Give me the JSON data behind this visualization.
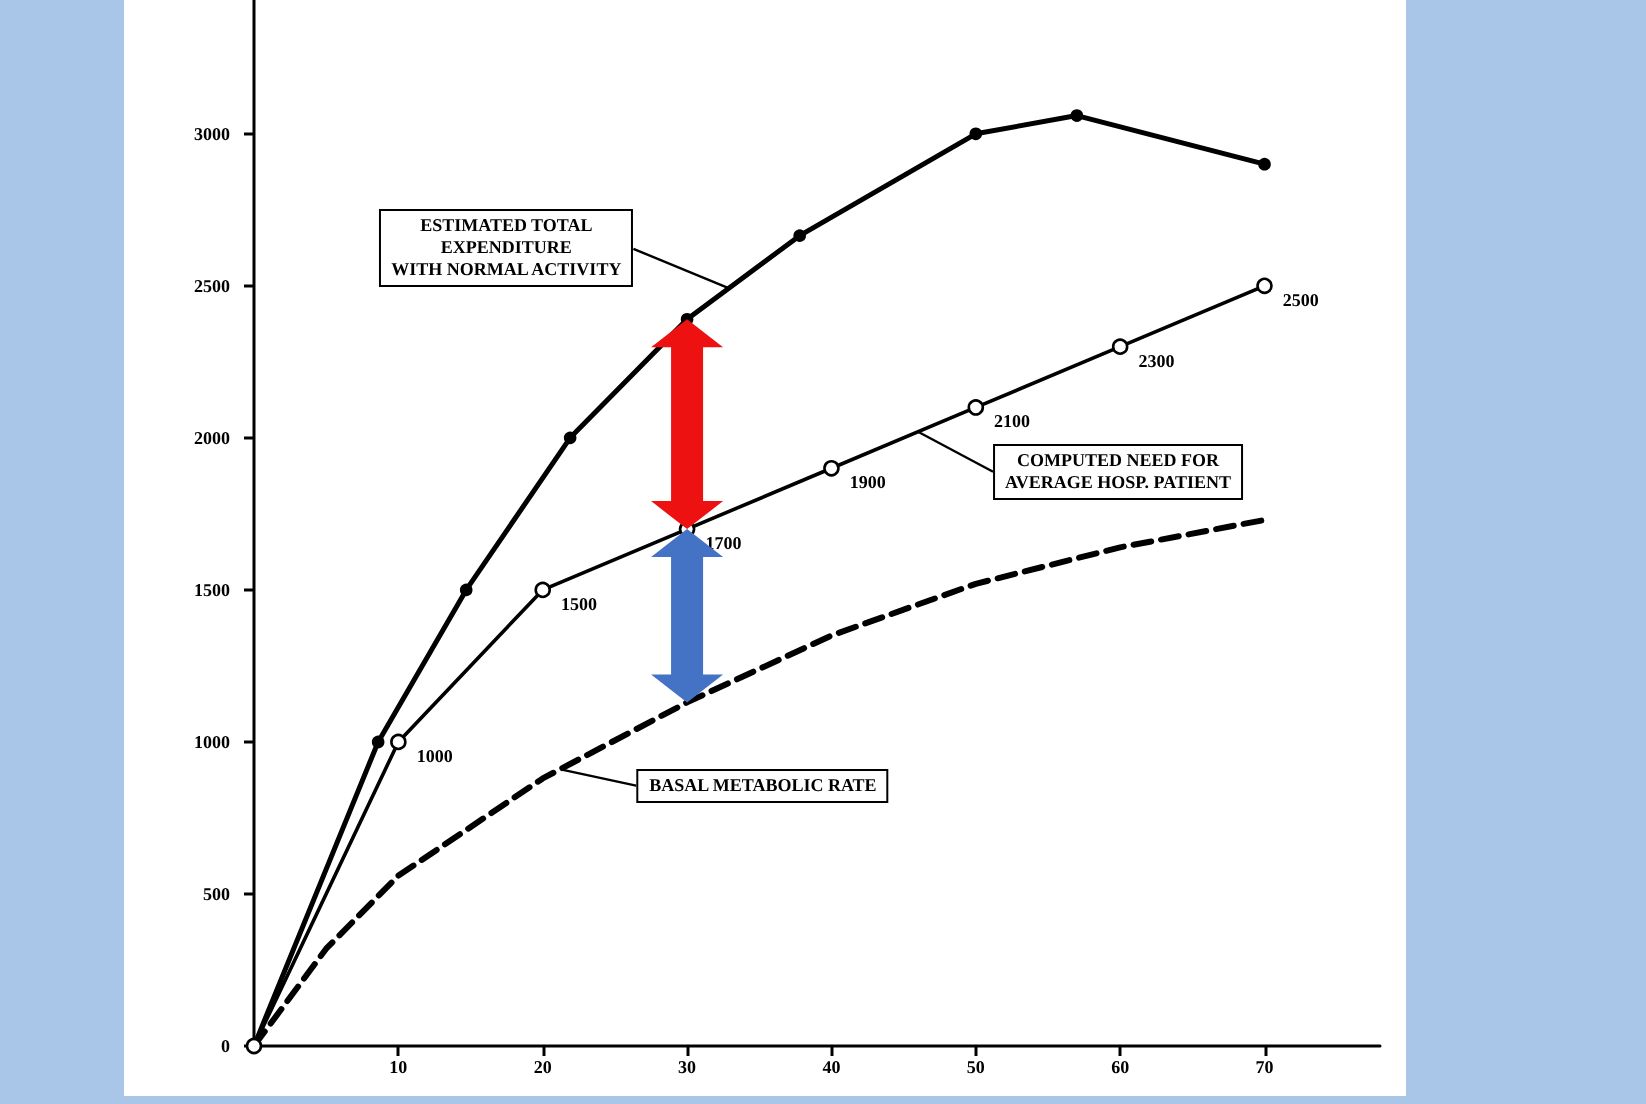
{
  "chart_data": {
    "type": "line",
    "xlim": [
      0,
      78
    ],
    "xticks": [
      10,
      20,
      30,
      40,
      50,
      60,
      70
    ],
    "ylim": [
      0,
      3440
    ],
    "yticks": [
      0,
      500,
      1000,
      1500,
      2000,
      2500,
      3000
    ],
    "series": [
      {
        "color": "#000000",
        "marker": "circle",
        "line_style": "solid",
        "x": [
          0,
          8.6,
          14.7,
          21.9,
          30,
          37.8,
          50,
          57,
          70
        ],
        "values": [
          0,
          1000,
          1500,
          2000,
          2390,
          2665,
          3000,
          3060,
          2900
        ]
      },
      {
        "color": "#000000",
        "marker": "circle",
        "line_style": "solid",
        "x": [
          0,
          10,
          20,
          30,
          40,
          50,
          60,
          70
        ],
        "values": [
          0,
          1000,
          1500,
          1700,
          1900,
          2100,
          2300,
          2500
        ],
        "value_labels": [
          null,
          "1000",
          "1500",
          "1700",
          "1900",
          "2100",
          "2300",
          "2500"
        ]
      },
      {
        "color": "#000000",
        "marker": "none",
        "line_style": "dashed",
        "x": [
          0,
          5,
          10,
          20,
          30,
          40,
          50,
          60,
          70
        ],
        "values": [
          0,
          320,
          560,
          880,
          1130,
          1350,
          1520,
          1640,
          1730
        ]
      }
    ],
    "annotations": [
      {
        "text": "ESTIMATED TOTAL\nEXPENDITURE\nWITH NORMAL ACTIVITY",
        "x": 33,
        "y": 2490
      },
      {
        "text": "COMPUTED NEED FOR\nAVERAGE HOSP. PATIENT",
        "x": 46,
        "y": 2020
      },
      {
        "text": "BASAL METABOLIC RATE",
        "x": 21.4,
        "y": 908
      }
    ]
  }
}
